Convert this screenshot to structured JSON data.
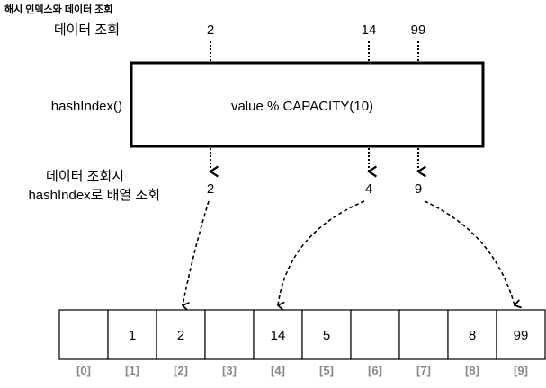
{
  "title": "해시 인덱스와 데이터 조회",
  "labels": {
    "lookup": "데이터 조회",
    "hash_fn": "hashIndex()",
    "lookup_by_index_1": "데이터 조회시",
    "lookup_by_index_2": "hashIndex로 배열 조회"
  },
  "function_box": "value % CAPACITY(10)",
  "inputs": [
    "2",
    "14",
    "99"
  ],
  "hashes": [
    "2",
    "4",
    "9"
  ],
  "array": {
    "values": [
      "",
      "1",
      "2",
      "",
      "14",
      "5",
      "",
      "",
      "8",
      "99"
    ],
    "indices": [
      "[0]",
      "[1]",
      "[2]",
      "[3]",
      "[4]",
      "[5]",
      "[6]",
      "[7]",
      "[8]",
      "[9]"
    ]
  }
}
